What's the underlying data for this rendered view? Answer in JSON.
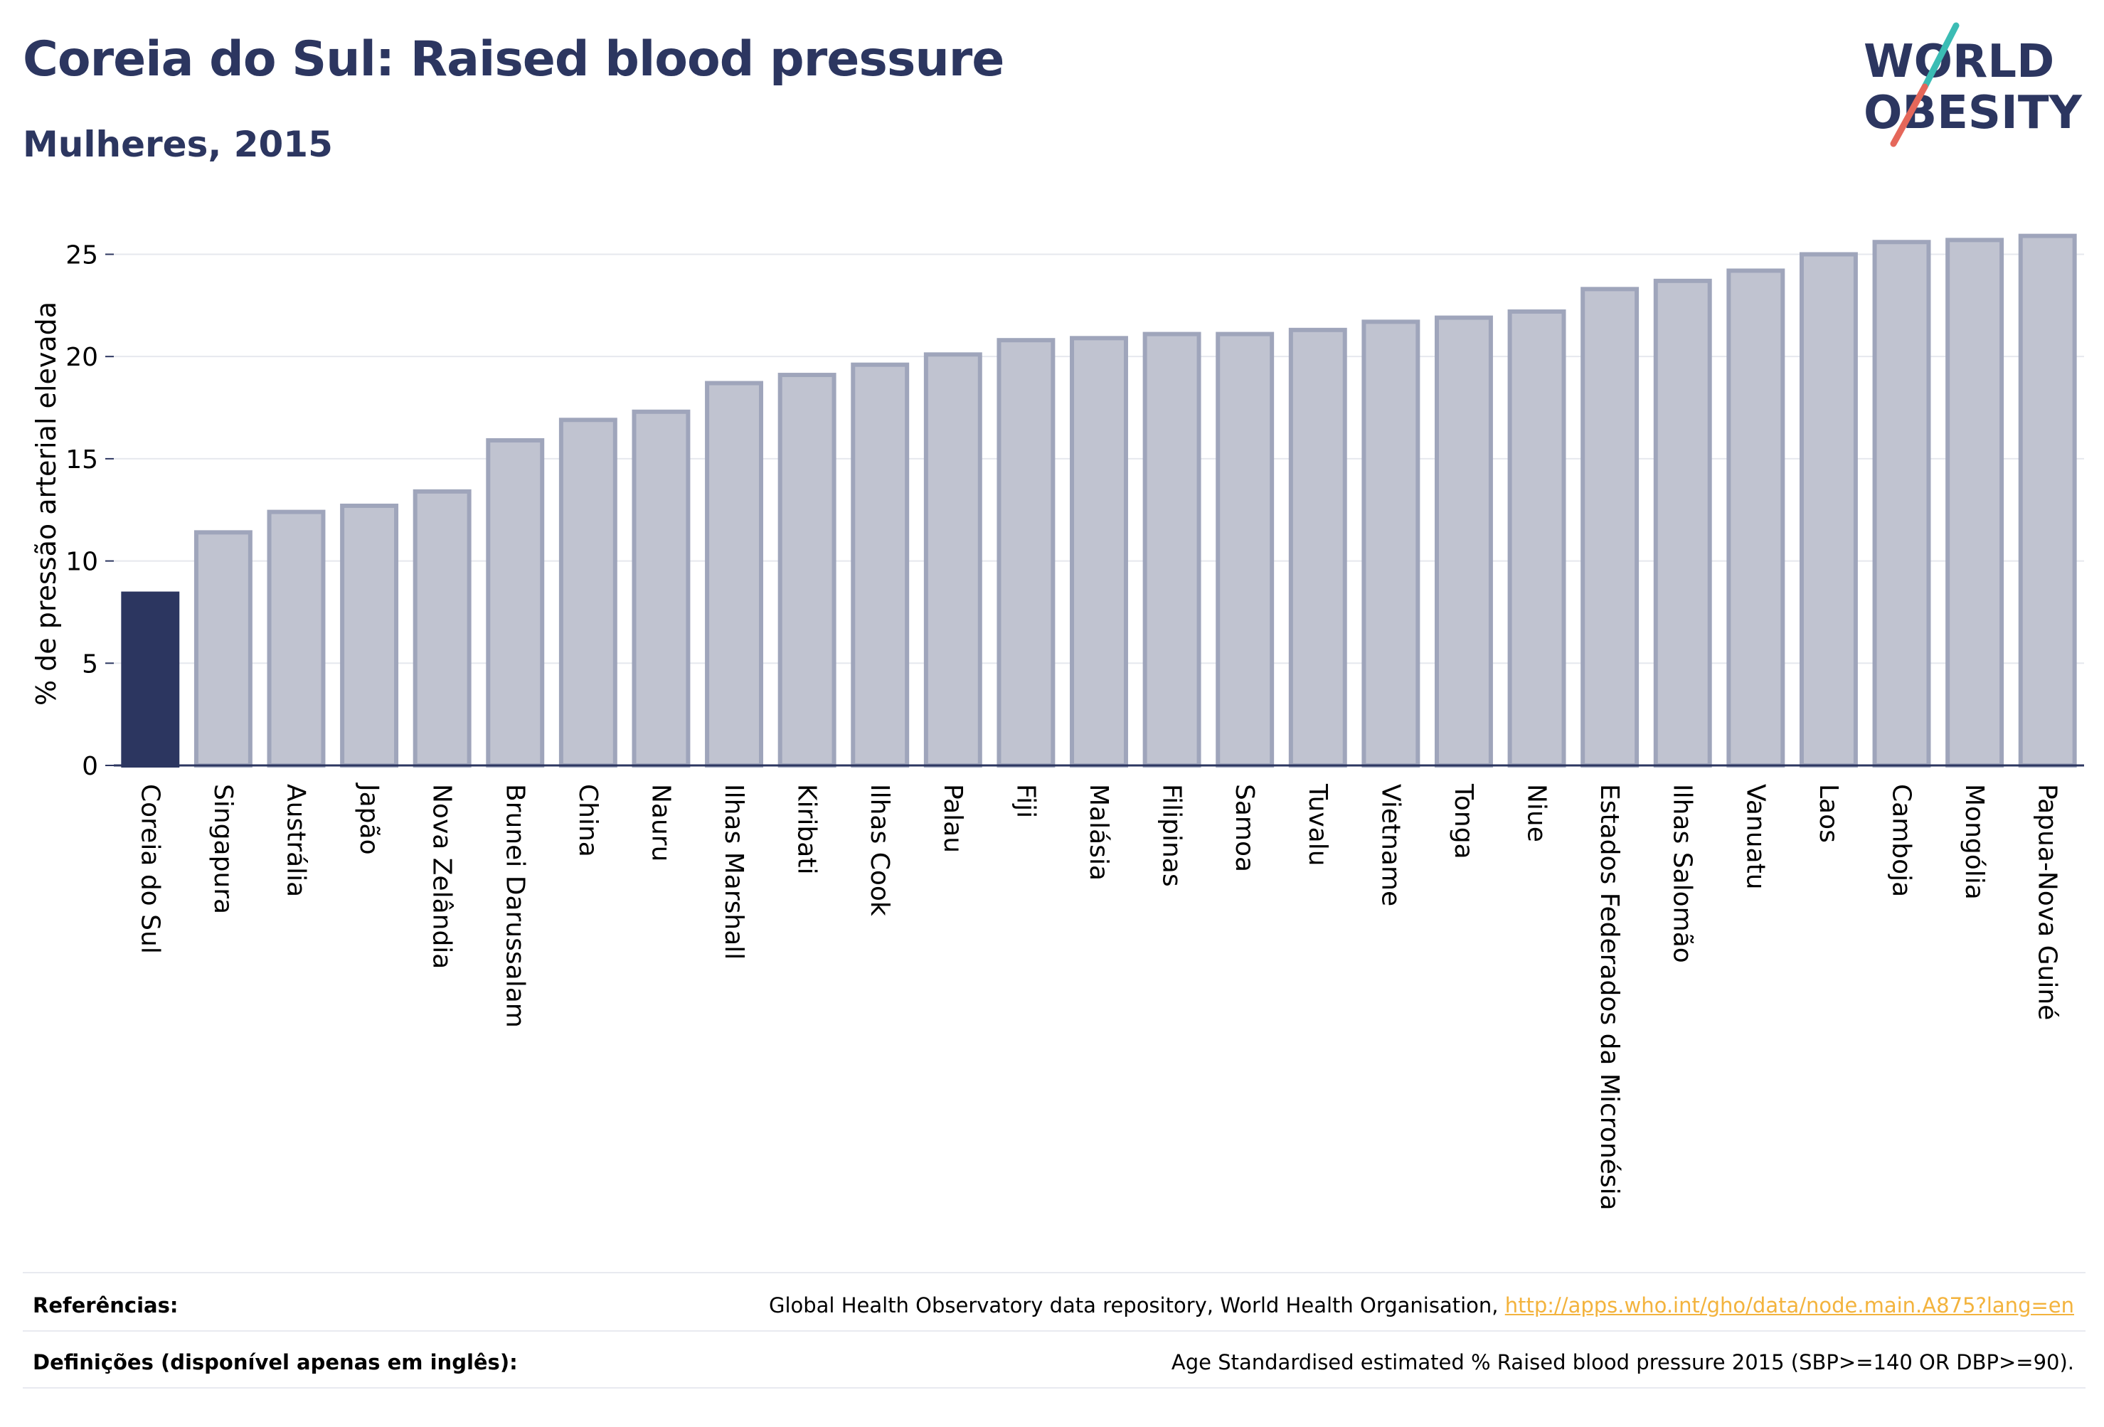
{
  "title": "Coreia do Sul: Raised blood pressure",
  "subtitle": "Mulheres, 2015",
  "logo": {
    "line1": "WORLD",
    "line2": "OBESITY"
  },
  "colors": {
    "highlight": "#2c3660",
    "bar_fill": "#c0c3d0",
    "bar_stroke": "#9fa5bb",
    "title": "#2c3660",
    "link": "#f3b33d"
  },
  "chart_data": {
    "type": "bar",
    "ylabel": "% de pressão arterial elevada",
    "xlabel": "",
    "ylim": [
      0,
      27
    ],
    "yticks": [
      0,
      5,
      10,
      15,
      20,
      25
    ],
    "grid": true,
    "highlight_category": "Coreia do Sul",
    "categories": [
      "Coreia do Sul",
      "Singapura",
      "Austrália",
      "Japão",
      "Nova Zelândia",
      "Brunei Darussalam",
      "China",
      "Nauru",
      "Ilhas Marshall",
      "Kiribati",
      "Ilhas Cook",
      "Palau",
      "Fiji",
      "Malásia",
      "Filipinas",
      "Samoa",
      "Tuvalu",
      "Vietname",
      "Tonga",
      "Niue",
      "Estados Federados da Micronésia",
      "Ilhas Salomão",
      "Vanuatu",
      "Laos",
      "Camboja",
      "Mongólia",
      "Papua-Nova Guiné"
    ],
    "values": [
      8.4,
      11.4,
      12.4,
      12.7,
      13.4,
      15.9,
      16.9,
      17.3,
      18.7,
      19.1,
      19.6,
      20.1,
      20.8,
      20.9,
      21.1,
      21.1,
      21.3,
      21.7,
      21.9,
      22.2,
      23.3,
      23.7,
      24.2,
      25.0,
      25.6,
      25.7,
      25.9
    ]
  },
  "footer": {
    "references_label": "Referências:",
    "references_text": "Global Health Observatory data repository, World Health Organisation, ",
    "references_link": "http://apps.who.int/gho/data/node.main.A875?lang=en",
    "definitions_label": "Definições (disponível apenas em inglês):",
    "definitions_text": "Age Standardised estimated % Raised blood pressure 2015 (SBP>=140 OR DBP>=90)."
  }
}
